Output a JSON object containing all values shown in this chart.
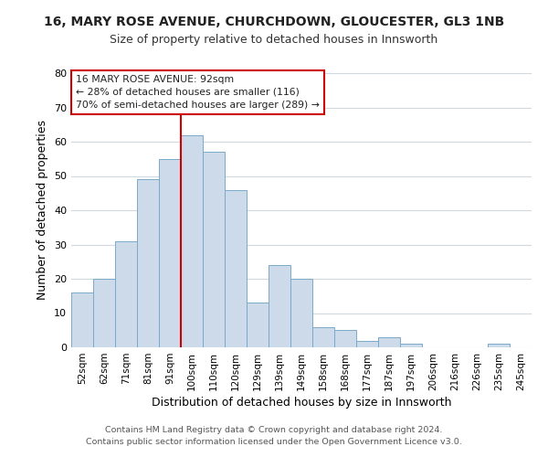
{
  "title_line1": "16, MARY ROSE AVENUE, CHURCHDOWN, GLOUCESTER, GL3 1NB",
  "title_line2": "Size of property relative to detached houses in Innsworth",
  "xlabel": "Distribution of detached houses by size in Innsworth",
  "ylabel": "Number of detached properties",
  "categories": [
    "52sqm",
    "62sqm",
    "71sqm",
    "81sqm",
    "91sqm",
    "100sqm",
    "110sqm",
    "120sqm",
    "129sqm",
    "139sqm",
    "149sqm",
    "158sqm",
    "168sqm",
    "177sqm",
    "187sqm",
    "197sqm",
    "206sqm",
    "216sqm",
    "226sqm",
    "235sqm",
    "245sqm"
  ],
  "values": [
    16,
    20,
    31,
    49,
    55,
    62,
    57,
    46,
    13,
    24,
    20,
    6,
    5,
    2,
    3,
    1,
    0,
    0,
    0,
    1,
    0
  ],
  "bar_color": "#ccdaea",
  "bar_edge_color": "#7aaac8",
  "vline_x": 4.5,
  "vline_color": "#cc0000",
  "ylim": [
    0,
    80
  ],
  "yticks": [
    0,
    10,
    20,
    30,
    40,
    50,
    60,
    70,
    80
  ],
  "annotation_box_text_line1": "16 MARY ROSE AVENUE: 92sqm",
  "annotation_box_text_line2": "← 28% of detached houses are smaller (116)",
  "annotation_box_text_line3": "70% of semi-detached houses are larger (289) →",
  "footer_line1": "Contains HM Land Registry data © Crown copyright and database right 2024.",
  "footer_line2": "Contains public sector information licensed under the Open Government Licence v3.0.",
  "background_color": "#ffffff",
  "grid_color": "#d0d8e0"
}
